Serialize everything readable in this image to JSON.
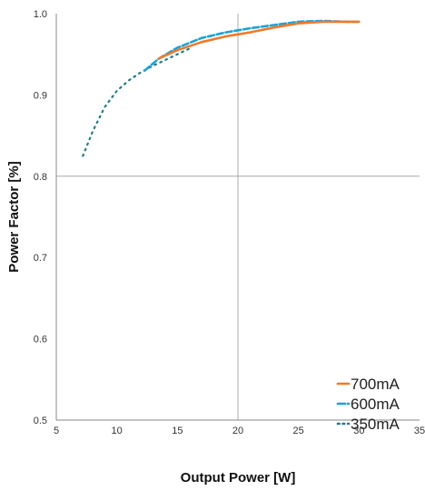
{
  "chart_data": {
    "type": "line",
    "xlabel": "Output Power [W]",
    "ylabel": "Power Factor [%]",
    "xlim": [
      5,
      35
    ],
    "ylim": [
      0.5,
      1.0
    ],
    "x_ticks": [
      "5",
      "10",
      "15",
      "20",
      "25",
      "30",
      "35"
    ],
    "y_ticks": [
      "0.5",
      "0.6",
      "0.7",
      "0.8",
      "0.9",
      "1.0"
    ],
    "gridlines": {
      "x": [
        20
      ],
      "y": [
        0.8
      ]
    },
    "legend_position": "bottom-right",
    "series": [
      {
        "name": "700mA",
        "color": "#F07A2A",
        "style": "solid",
        "x": [
          13.5,
          15,
          17,
          19,
          21,
          23,
          25,
          27,
          29,
          30
        ],
        "y": [
          0.945,
          0.955,
          0.965,
          0.972,
          0.977,
          0.983,
          0.988,
          0.99,
          0.99,
          0.99
        ]
      },
      {
        "name": "600mA",
        "color": "#1BA3D8",
        "style": "dashed",
        "x": [
          12.3,
          13.5,
          15,
          17,
          19,
          21,
          23,
          25,
          27,
          29,
          30
        ],
        "y": [
          0.93,
          0.945,
          0.958,
          0.97,
          0.977,
          0.982,
          0.986,
          0.99,
          0.991,
          0.99,
          0.99
        ]
      },
      {
        "name": "350mA",
        "color": "#1A7F8C",
        "style": "dotted",
        "x": [
          7.2,
          8,
          9,
          10,
          11,
          12,
          13,
          14,
          15,
          16
        ],
        "y": [
          0.825,
          0.855,
          0.885,
          0.905,
          0.918,
          0.928,
          0.936,
          0.943,
          0.95,
          0.957
        ]
      }
    ]
  }
}
